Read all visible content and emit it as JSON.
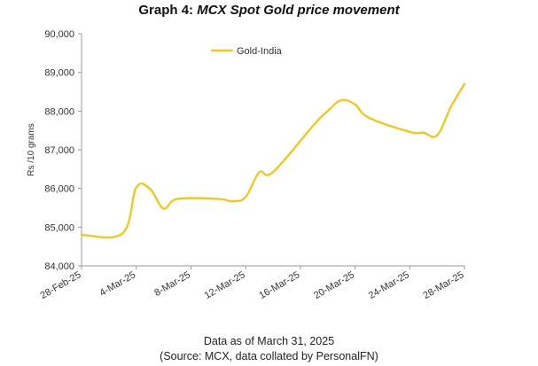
{
  "chart_data": {
    "type": "line",
    "title_lead": "Graph 4: ",
    "title_rest": "MCX Spot Gold price movement",
    "ylabel": "Rs /10 grams",
    "xlabel": "",
    "ylim": [
      84000,
      90000
    ],
    "yticks": [
      84000,
      85000,
      86000,
      87000,
      88000,
      89000,
      90000
    ],
    "ytick_labels": [
      "84,000",
      "85,000",
      "86,000",
      "87,000",
      "88,000",
      "89,000",
      "90,000"
    ],
    "x_start": "28-Feb-25",
    "x_end": "28-Mar-25",
    "xticks": [
      "28-Feb-25",
      "4-Mar-25",
      "8-Mar-25",
      "12-Mar-25",
      "16-Mar-25",
      "20-Mar-25",
      "24-Mar-25",
      "28-Mar-25"
    ],
    "legend_position": "top",
    "grid": false,
    "series": [
      {
        "name": "Gold-India",
        "color": "#f5c518",
        "points": [
          {
            "x": "28-Feb-25",
            "y": 84800
          },
          {
            "x": "3-Mar-25",
            "y": 84840
          },
          {
            "x": "4-Mar-25",
            "y": 86020
          },
          {
            "x": "5-Mar-25",
            "y": 85990
          },
          {
            "x": "6-Mar-25",
            "y": 85480
          },
          {
            "x": "7-Mar-25",
            "y": 85730
          },
          {
            "x": "10-Mar-25",
            "y": 85730
          },
          {
            "x": "11-Mar-25",
            "y": 85670
          },
          {
            "x": "12-Mar-25",
            "y": 85780
          },
          {
            "x": "13-Mar-25",
            "y": 86420
          },
          {
            "x": "14-Mar-25",
            "y": 86420
          },
          {
            "x": "17-Mar-25",
            "y": 87650
          },
          {
            "x": "18-Mar-25",
            "y": 88000
          },
          {
            "x": "19-Mar-25",
            "y": 88280
          },
          {
            "x": "20-Mar-25",
            "y": 88170
          },
          {
            "x": "21-Mar-25",
            "y": 87830
          },
          {
            "x": "24-Mar-25",
            "y": 87460
          },
          {
            "x": "25-Mar-25",
            "y": 87440
          },
          {
            "x": "26-Mar-25",
            "y": 87370
          },
          {
            "x": "27-Mar-25",
            "y": 88100
          },
          {
            "x": "28-Mar-25",
            "y": 88700
          }
        ]
      }
    ]
  },
  "footer": {
    "note": "Data as of March 31, 2025",
    "source": "(Source: MCX, data collated by PersonalFN)"
  }
}
